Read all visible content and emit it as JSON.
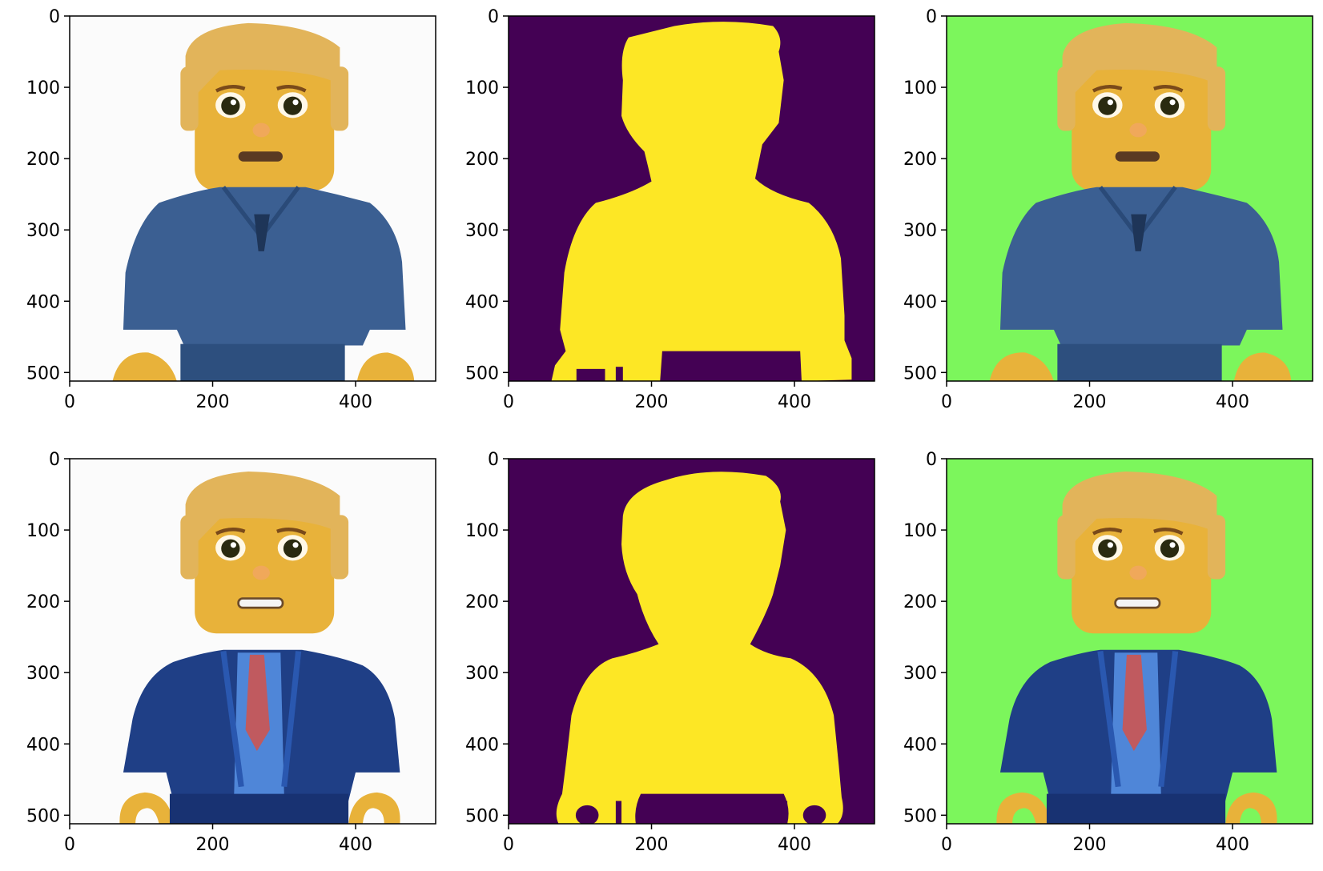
{
  "figure": {
    "grid": {
      "rows": 2,
      "cols": 3
    },
    "colors": {
      "mask_background": "#440154",
      "mask_foreground": "#fde725",
      "green_background": "#7cf65c",
      "white_background": "#fbfbfb",
      "figure_skin": "#e8b23a",
      "hair": "#e2b45a",
      "top_shirt": "#3b5f92",
      "bottom_suit": "#1f3f86",
      "tie": "#c05a5f"
    },
    "x_ticks": [
      {
        "value": 0,
        "label": "0"
      },
      {
        "value": 200,
        "label": "200"
      },
      {
        "value": 400,
        "label": "400"
      }
    ],
    "y_ticks": [
      {
        "value": 0,
        "label": "0"
      },
      {
        "value": 100,
        "label": "100"
      },
      {
        "value": 200,
        "label": "200"
      },
      {
        "value": 300,
        "label": "300"
      },
      {
        "value": 400,
        "label": "400"
      },
      {
        "value": 500,
        "label": "500"
      }
    ],
    "xlim": [
      0,
      512
    ],
    "ylim": [
      512,
      0
    ],
    "panels": [
      {
        "row": 0,
        "col": 0,
        "kind": "original",
        "figure": "shirt"
      },
      {
        "row": 0,
        "col": 1,
        "kind": "mask",
        "figure": "shirt"
      },
      {
        "row": 0,
        "col": 2,
        "kind": "composite",
        "figure": "shirt"
      },
      {
        "row": 1,
        "col": 0,
        "kind": "original",
        "figure": "suit"
      },
      {
        "row": 1,
        "col": 1,
        "kind": "mask",
        "figure": "suit"
      },
      {
        "row": 1,
        "col": 2,
        "kind": "composite",
        "figure": "suit"
      }
    ]
  }
}
